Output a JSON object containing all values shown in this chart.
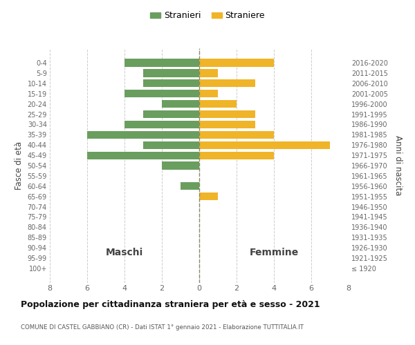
{
  "age_groups": [
    "100+",
    "95-99",
    "90-94",
    "85-89",
    "80-84",
    "75-79",
    "70-74",
    "65-69",
    "60-64",
    "55-59",
    "50-54",
    "45-49",
    "40-44",
    "35-39",
    "30-34",
    "25-29",
    "20-24",
    "15-19",
    "10-14",
    "5-9",
    "0-4"
  ],
  "birth_years": [
    "≤ 1920",
    "1921-1925",
    "1926-1930",
    "1931-1935",
    "1936-1940",
    "1941-1945",
    "1946-1950",
    "1951-1955",
    "1956-1960",
    "1961-1965",
    "1966-1970",
    "1971-1975",
    "1976-1980",
    "1981-1985",
    "1986-1990",
    "1991-1995",
    "1996-2000",
    "2001-2005",
    "2006-2010",
    "2011-2015",
    "2016-2020"
  ],
  "maschi": [
    0,
    0,
    0,
    0,
    0,
    0,
    0,
    0,
    1,
    0,
    2,
    6,
    3,
    6,
    4,
    3,
    2,
    4,
    3,
    3,
    4
  ],
  "femmine": [
    0,
    0,
    0,
    0,
    0,
    0,
    0,
    1,
    0,
    0,
    0,
    4,
    7,
    4,
    3,
    3,
    2,
    1,
    3,
    1,
    4
  ],
  "maschi_color": "#6a9e5f",
  "femmine_color": "#f0b429",
  "title": "Popolazione per cittadinanza straniera per età e sesso - 2021",
  "subtitle": "COMUNE DI CASTEL GABBIANO (CR) - Dati ISTAT 1° gennaio 2021 - Elaborazione TUTTITALIA.IT",
  "left_label": "Maschi",
  "right_label": "Femmine",
  "ylabel_left": "Fasce di età",
  "ylabel_right": "Anni di nascita",
  "legend_maschi": "Stranieri",
  "legend_femmine": "Straniere",
  "xlim": 8,
  "background_color": "#ffffff",
  "grid_color": "#cccccc"
}
